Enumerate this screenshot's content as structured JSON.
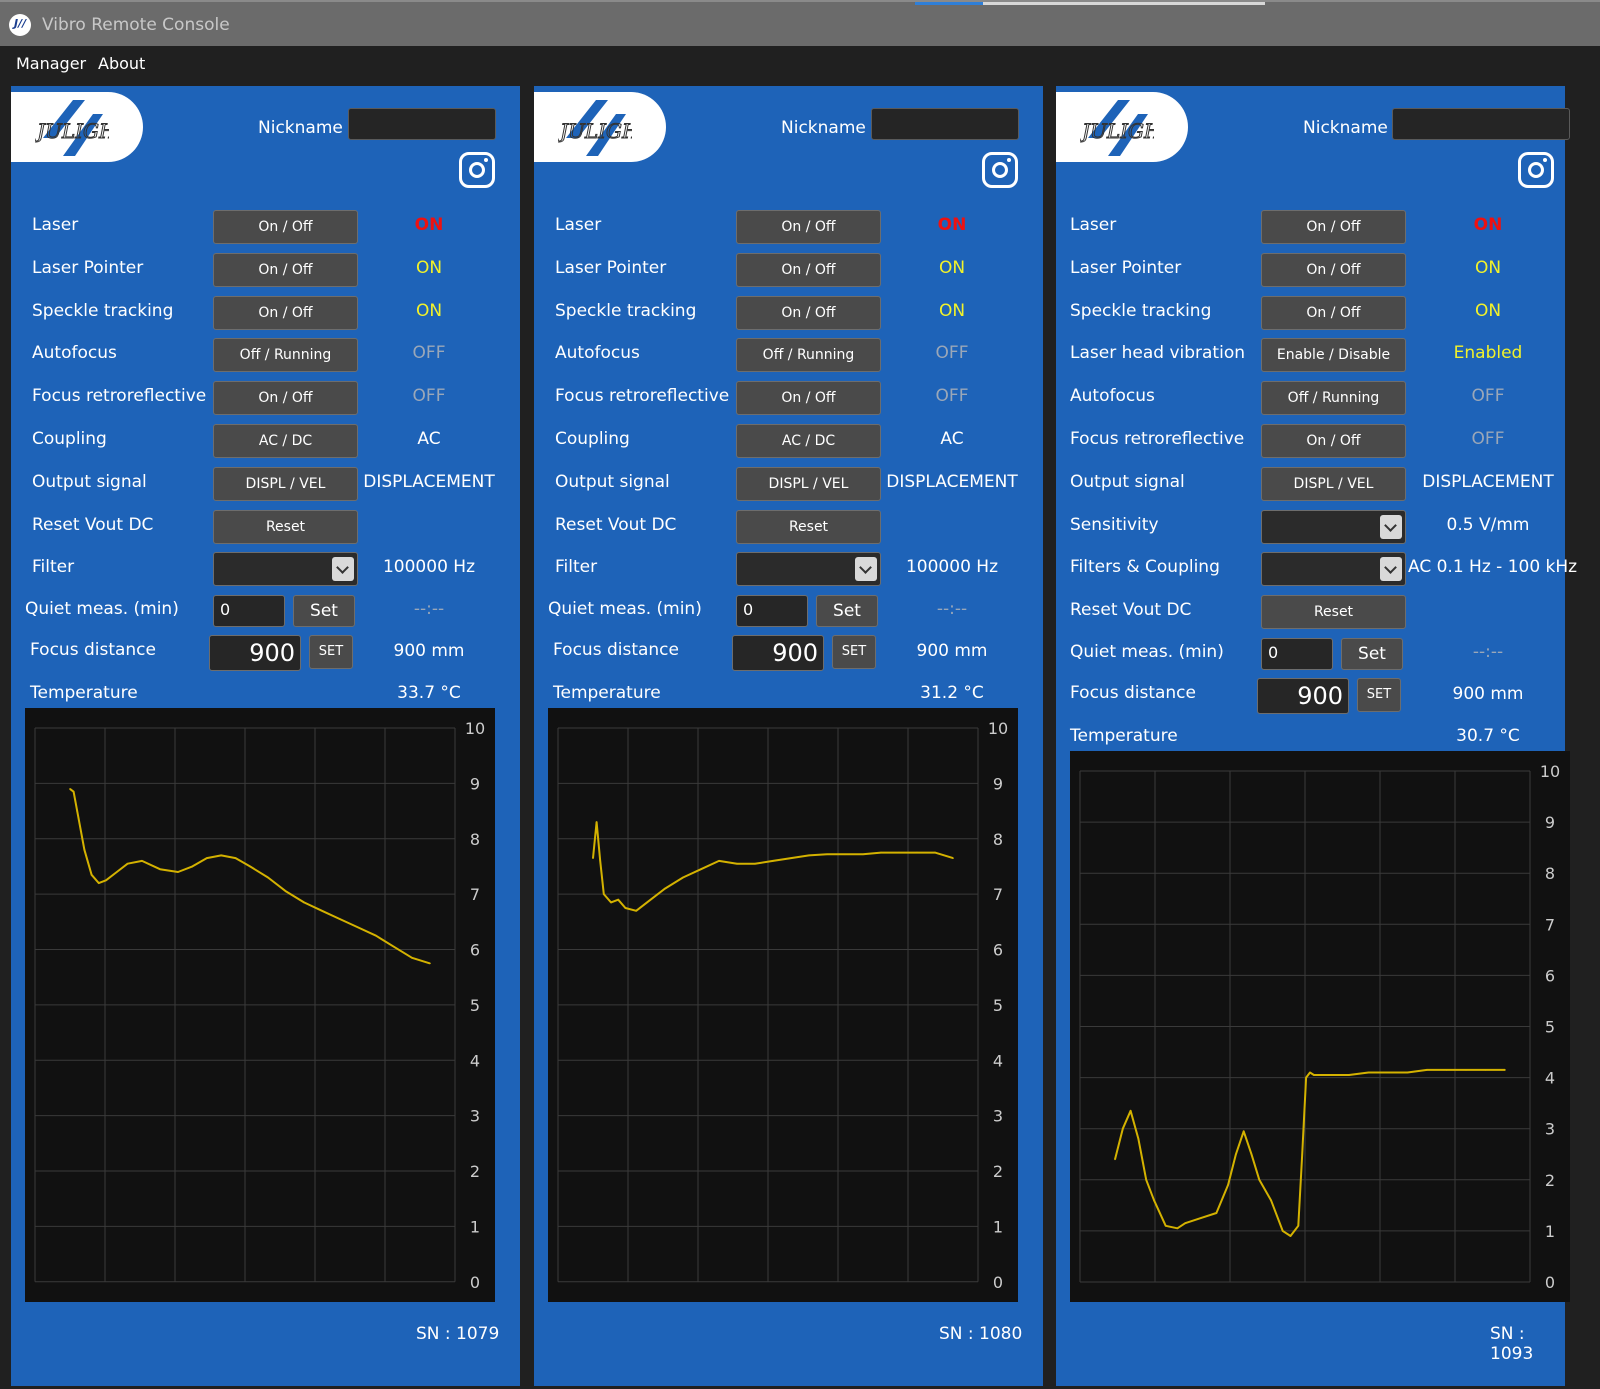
{
  "window": {
    "title": "Vibro Remote Console",
    "icon": "julight-app-icon"
  },
  "menu": {
    "items": [
      "Manager",
      "About"
    ]
  },
  "labels": {
    "nickname": "Nickname",
    "temperature": "Temperature"
  },
  "colors": {
    "panel": "#1e63b8",
    "chart_bg": "#111111",
    "trace": "#d4b200",
    "on_red": "#ee1111",
    "on_yellow": "#f2f22a",
    "off_grey": "#9aa7b8"
  },
  "panels": [
    {
      "sn": "SN : 1079",
      "nickname_value": "",
      "rows": [
        {
          "label": "Laser",
          "control": "button",
          "button": "On / Off",
          "status": "ON",
          "status_color": "red"
        },
        {
          "label": "Laser Pointer",
          "control": "button",
          "button": "On / Off",
          "status": "ON",
          "status_color": "yellow"
        },
        {
          "label": "Speckle tracking",
          "control": "button",
          "button": "On / Off",
          "status": "ON",
          "status_color": "yellow"
        },
        {
          "label": "Autofocus",
          "control": "button",
          "button": "Off / Running",
          "status": "OFF",
          "status_color": "grey"
        },
        {
          "label": "Focus retroreflective",
          "control": "button",
          "button": "On / Off",
          "status": "OFF",
          "status_color": "grey"
        },
        {
          "label": "Coupling",
          "control": "button",
          "button": "AC / DC",
          "status": "AC",
          "status_color": "white"
        },
        {
          "label": "Output signal",
          "control": "button",
          "button": "DISPL / VEL",
          "status": "DISPLACEMENT",
          "status_color": "white"
        },
        {
          "label": "Reset Vout DC",
          "control": "button",
          "button": "Reset",
          "status": "",
          "status_color": "white"
        },
        {
          "label": "Filter",
          "control": "select",
          "button": "",
          "status": "100000 Hz",
          "status_color": "white"
        }
      ],
      "quiet": {
        "label": "Quiet meas. (min)",
        "value": "0",
        "button": "Set",
        "status": "--:--"
      },
      "focus": {
        "label": "Focus distance",
        "value": "900",
        "button": "SET",
        "status": "900 mm"
      },
      "temperature": "33.7 °C",
      "chart_data": {
        "type": "line",
        "ylim": [
          0,
          10
        ],
        "yticks": [
          "0",
          "1",
          "2",
          "3",
          "4",
          "5",
          "6",
          "7",
          "8",
          "9",
          "10"
        ],
        "x": [
          0,
          0.01,
          0.02,
          0.04,
          0.06,
          0.08,
          0.1,
          0.13,
          0.16,
          0.2,
          0.25,
          0.3,
          0.34,
          0.38,
          0.42,
          0.46,
          0.5,
          0.55,
          0.6,
          0.65,
          0.7,
          0.75,
          0.8,
          0.85,
          0.9,
          0.95,
          1.0
        ],
        "values": [
          8.9,
          8.85,
          8.5,
          7.8,
          7.35,
          7.2,
          7.25,
          7.4,
          7.55,
          7.6,
          7.45,
          7.4,
          7.5,
          7.65,
          7.7,
          7.65,
          7.5,
          7.3,
          7.05,
          6.85,
          6.7,
          6.55,
          6.4,
          6.25,
          6.05,
          5.85,
          5.75
        ]
      }
    },
    {
      "sn": "SN : 1080",
      "nickname_value": "",
      "rows": [
        {
          "label": "Laser",
          "control": "button",
          "button": "On / Off",
          "status": "ON",
          "status_color": "red"
        },
        {
          "label": "Laser Pointer",
          "control": "button",
          "button": "On / Off",
          "status": "ON",
          "status_color": "yellow"
        },
        {
          "label": "Speckle tracking",
          "control": "button",
          "button": "On / Off",
          "status": "ON",
          "status_color": "yellow"
        },
        {
          "label": "Autofocus",
          "control": "button",
          "button": "Off / Running",
          "status": "OFF",
          "status_color": "grey"
        },
        {
          "label": "Focus retroreflective",
          "control": "button",
          "button": "On / Off",
          "status": "OFF",
          "status_color": "grey"
        },
        {
          "label": "Coupling",
          "control": "button",
          "button": "AC / DC",
          "status": "AC",
          "status_color": "white"
        },
        {
          "label": "Output signal",
          "control": "button",
          "button": "DISPL / VEL",
          "status": "DISPLACEMENT",
          "status_color": "white"
        },
        {
          "label": "Reset Vout DC",
          "control": "button",
          "button": "Reset",
          "status": "",
          "status_color": "white"
        },
        {
          "label": "Filter",
          "control": "select",
          "button": "",
          "status": "100000 Hz",
          "status_color": "white"
        }
      ],
      "quiet": {
        "label": "Quiet meas. (min)",
        "value": "0",
        "button": "Set",
        "status": "--:--"
      },
      "focus": {
        "label": "Focus distance",
        "value": "900",
        "button": "SET",
        "status": "900 mm"
      },
      "temperature": "31.2 °C",
      "chart_data": {
        "type": "line",
        "ylim": [
          0,
          10
        ],
        "yticks": [
          "0",
          "1",
          "2",
          "3",
          "4",
          "5",
          "6",
          "7",
          "8",
          "9",
          "10"
        ],
        "x": [
          0,
          0.01,
          0.02,
          0.03,
          0.05,
          0.07,
          0.09,
          0.12,
          0.15,
          0.2,
          0.25,
          0.3,
          0.35,
          0.4,
          0.45,
          0.5,
          0.55,
          0.6,
          0.65,
          0.7,
          0.75,
          0.8,
          0.85,
          0.9,
          0.95,
          1.0
        ],
        "values": [
          7.65,
          8.3,
          7.6,
          7.0,
          6.85,
          6.9,
          6.75,
          6.7,
          6.85,
          7.1,
          7.3,
          7.45,
          7.6,
          7.55,
          7.55,
          7.6,
          7.65,
          7.7,
          7.72,
          7.72,
          7.72,
          7.75,
          7.75,
          7.75,
          7.75,
          7.65
        ]
      }
    },
    {
      "sn": "SN : 1093",
      "nickname_value": "",
      "rows": [
        {
          "label": "Laser",
          "control": "button",
          "button": "On / Off",
          "status": "ON",
          "status_color": "red"
        },
        {
          "label": "Laser Pointer",
          "control": "button",
          "button": "On / Off",
          "status": "ON",
          "status_color": "yellow"
        },
        {
          "label": "Speckle tracking",
          "control": "button",
          "button": "On / Off",
          "status": "ON",
          "status_color": "yellow"
        },
        {
          "label": "Laser head vibration",
          "control": "button",
          "button": "Enable / Disable",
          "status": "Enabled",
          "status_color": "yellow"
        },
        {
          "label": "Autofocus",
          "control": "button",
          "button": "Off / Running",
          "status": "OFF",
          "status_color": "grey"
        },
        {
          "label": "Focus retroreflective",
          "control": "button",
          "button": "On / Off",
          "status": "OFF",
          "status_color": "grey"
        },
        {
          "label": "Output signal",
          "control": "button",
          "button": "DISPL / VEL",
          "status": "DISPLACEMENT",
          "status_color": "white"
        },
        {
          "label": "Sensitivity",
          "control": "select",
          "button": "",
          "status": "0.5 V/mm",
          "status_color": "white"
        },
        {
          "label": "Filters & Coupling",
          "control": "select",
          "button": "",
          "status": "AC 0.1 Hz - 100 kHz",
          "status_color": "white"
        },
        {
          "label": "Reset Vout DC",
          "control": "button",
          "button": "Reset",
          "status": "",
          "status_color": "white"
        }
      ],
      "quiet": {
        "label": "Quiet meas. (min)",
        "value": "0",
        "button": "Set",
        "status": "--:--"
      },
      "focus": {
        "label": "Focus distance",
        "value": "900",
        "button": "SET",
        "status": "900 mm"
      },
      "temperature": "30.7 °C",
      "chart_data": {
        "type": "line",
        "ylim": [
          0,
          10
        ],
        "yticks": [
          "0",
          "1",
          "2",
          "3",
          "4",
          "5",
          "6",
          "7",
          "8",
          "9",
          "10"
        ],
        "x": [
          0,
          0.02,
          0.04,
          0.06,
          0.08,
          0.1,
          0.13,
          0.16,
          0.18,
          0.22,
          0.26,
          0.29,
          0.31,
          0.33,
          0.35,
          0.37,
          0.4,
          0.43,
          0.45,
          0.47,
          0.48,
          0.49,
          0.5,
          0.51,
          0.53,
          0.56,
          0.6,
          0.65,
          0.7,
          0.75,
          0.8,
          0.85,
          0.9,
          0.95,
          1.0
        ],
        "values": [
          2.4,
          3.0,
          3.35,
          2.8,
          2.0,
          1.6,
          1.1,
          1.05,
          1.15,
          1.25,
          1.35,
          1.9,
          2.5,
          2.95,
          2.5,
          2.0,
          1.6,
          1.0,
          0.9,
          1.1,
          2.5,
          4.0,
          4.1,
          4.05,
          4.05,
          4.05,
          4.05,
          4.1,
          4.1,
          4.1,
          4.15,
          4.15,
          4.15,
          4.15,
          4.15
        ]
      }
    }
  ]
}
